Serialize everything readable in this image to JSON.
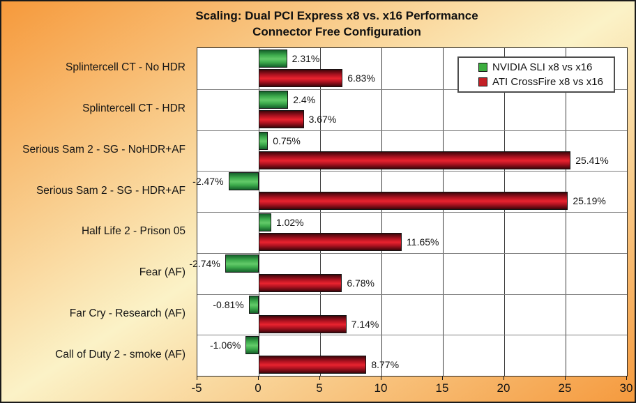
{
  "title": {
    "line1": "Scaling: Dual PCI Express x8 vs. x16 Performance",
    "line2": "Connector Free Configuration"
  },
  "legend": {
    "items": [
      {
        "label": "NVIDIA SLI x8 vs x16",
        "color": "#3CAE3F"
      },
      {
        "label": "ATI CrossFire x8 vs x16",
        "color": "#C32026"
      }
    ]
  },
  "colors": {
    "background_orange": "#F6993B",
    "background_cream": "#FBF2C7",
    "plot_background": "#FFFFFF",
    "nvidia_green": "#3DAB4C",
    "ati_red": "#D3202C",
    "text": "#141414"
  },
  "chart_data": {
    "type": "bar",
    "orientation": "horizontal",
    "title": "Scaling: Dual PCI Express x8 vs. x16 Performance — Connector Free Configuration",
    "categories": [
      "Splintercell CT - No HDR",
      "Splintercell CT - HDR",
      "Serious Sam 2 - SG - NoHDR+AF",
      "Serious Sam 2 - SG - HDR+AF",
      "Half Life 2 - Prison 05",
      "Fear (AF)",
      "Far Cry - Research (AF)",
      "Call of Duty 2 - smoke (AF)"
    ],
    "series": [
      {
        "name": "NVIDIA SLI x8 vs x16",
        "values": [
          2.31,
          2.4,
          0.75,
          -2.47,
          1.02,
          -2.74,
          -0.81,
          -1.06
        ],
        "labels": [
          "2.31%",
          "2.4%",
          "0.75%",
          "-2.47%",
          "1.02%",
          "-2.74%",
          "-0.81%",
          "-1.06%"
        ]
      },
      {
        "name": "ATI CrossFire x8 vs x16",
        "values": [
          6.83,
          3.67,
          25.41,
          25.19,
          11.65,
          6.78,
          7.14,
          8.77
        ],
        "labels": [
          "6.83%",
          "3.67%",
          "25.41%",
          "25.19%",
          "11.65%",
          "6.78%",
          "7.14%",
          "8.77%"
        ]
      }
    ],
    "xlim": [
      -5,
      30
    ],
    "xticks": [
      -5,
      0,
      5,
      10,
      15,
      20,
      25,
      30
    ],
    "grid": true,
    "legend_position": "top-right"
  }
}
